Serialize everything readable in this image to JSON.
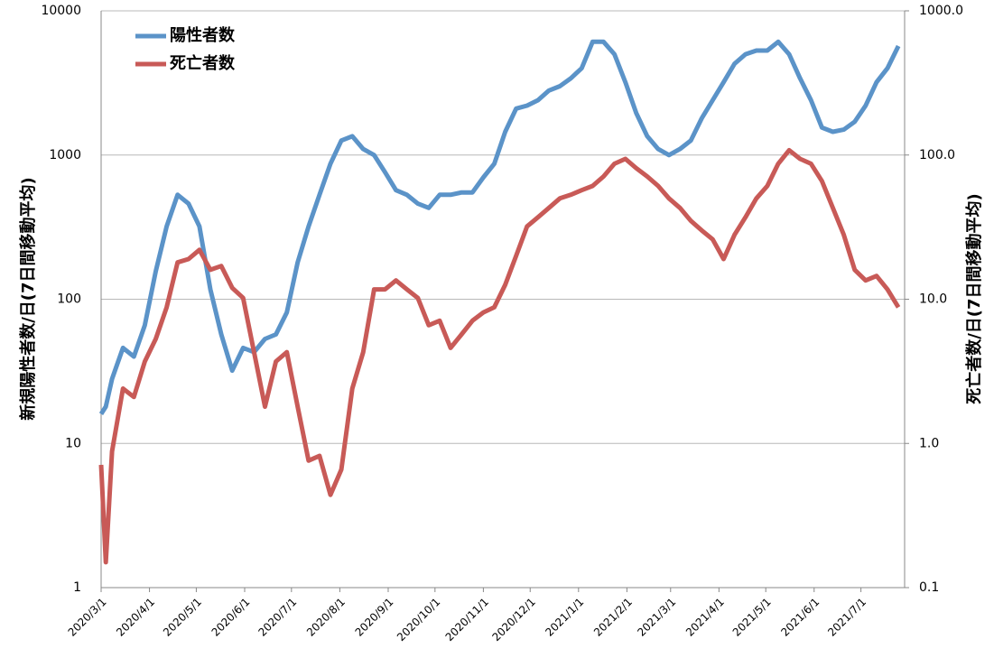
{
  "chart_data": {
    "type": "line",
    "ylabel": "新規陽性者数/日(7日間移動平均)",
    "y2label": "死亡者数/日(7日間移動平均)",
    "ylog": true,
    "y2log": true,
    "grid": true,
    "legend": "top-left",
    "x": [
      "2020/3/1",
      "2020/3/4",
      "2020/3/8",
      "2020/3/15",
      "2020/3/22",
      "2020/3/29",
      "2020/4/5",
      "2020/4/12",
      "2020/4/19",
      "2020/4/26",
      "2020/5/3",
      "2020/5/10",
      "2020/5/17",
      "2020/5/24",
      "2020/5/31",
      "2020/6/7",
      "2020/6/14",
      "2020/6/21",
      "2020/6/28",
      "2020/7/5",
      "2020/7/12",
      "2020/7/19",
      "2020/7/26",
      "2020/8/2",
      "2020/8/9",
      "2020/8/16",
      "2020/8/23",
      "2020/8/30",
      "2020/9/6",
      "2020/9/13",
      "2020/9/20",
      "2020/9/27",
      "2020/10/4",
      "2020/10/11",
      "2020/10/18",
      "2020/10/25",
      "2020/11/1",
      "2020/11/8",
      "2020/11/15",
      "2020/11/22",
      "2020/11/29",
      "2020/12/6",
      "2020/12/13",
      "2020/12/20",
      "2020/12/27",
      "2021/1/3",
      "2021/1/10",
      "2021/1/17",
      "2021/1/24",
      "2021/1/31",
      "2021/2/7",
      "2021/2/14",
      "2021/2/21",
      "2021/2/28",
      "2021/3/7",
      "2021/3/14",
      "2021/3/21",
      "2021/3/28",
      "2021/4/4",
      "2021/4/11",
      "2021/4/18",
      "2021/4/25",
      "2021/5/2",
      "2021/5/9",
      "2021/5/16",
      "2021/5/23",
      "2021/5/30",
      "2021/6/6",
      "2021/6/13",
      "2021/6/20",
      "2021/6/27",
      "2021/7/4",
      "2021/7/11",
      "2021/7/18",
      "2021/7/25"
    ],
    "xlim": [
      "2020/3/1",
      "2021/7/29"
    ],
    "xticks": [
      "2020/3/1",
      "2020/4/1",
      "2020/5/1",
      "2020/6/1",
      "2020/7/1",
      "2020/8/1",
      "2020/9/1",
      "2020/10/1",
      "2020/11/1",
      "2020/12/1",
      "2021/1/1",
      "2021/2/1",
      "2021/3/1",
      "2021/4/1",
      "2021/5/1",
      "2021/6/1",
      "2021/7/1"
    ],
    "ylim": [
      1,
      10000
    ],
    "yticks": [
      1,
      10,
      100,
      1000,
      10000
    ],
    "y2lim": [
      0.1,
      1000
    ],
    "y2ticks": [
      0.1,
      {
        "value": 1,
        "label": "1.0"
      },
      {
        "value": 10,
        "label": "10.0"
      },
      {
        "value": 100,
        "label": "100.0"
      },
      {
        "value": 1000,
        "label": "1000.0"
      }
    ],
    "series": [
      {
        "name": "陽性者数",
        "color": "#5b93c8",
        "values": [
          16,
          18,
          28,
          46,
          40,
          66,
          156,
          320,
          530,
          460,
          320,
          117,
          57,
          32,
          46,
          43,
          53,
          57,
          81,
          180,
          320,
          530,
          870,
          1260,
          1350,
          1100,
          1000,
          760,
          570,
          530,
          460,
          430,
          530,
          530,
          550,
          550,
          700,
          870,
          1450,
          2100,
          2200,
          2400,
          2800,
          3000,
          3400,
          4000,
          6100,
          6100,
          5000,
          3200,
          1950,
          1350,
          1100,
          1000,
          1100,
          1260,
          1800,
          2400,
          3200,
          4300,
          5000,
          5300,
          5300,
          6100,
          5000,
          3400,
          2400,
          1550,
          1450,
          1500,
          1700,
          2200,
          3200,
          4000,
          5700
        ]
      },
      {
        "name": "死亡者数",
        "color": "#c85a57",
        "axis": "y2",
        "values": [
          0.71,
          0.15,
          0.88,
          2.4,
          2.1,
          3.7,
          5.3,
          8.8,
          18,
          19,
          22,
          16,
          17,
          12,
          10.2,
          4.3,
          1.8,
          3.7,
          4.3,
          1.8,
          0.76,
          0.82,
          0.44,
          0.66,
          2.4,
          4.3,
          11.7,
          11.7,
          13.5,
          11.7,
          10.2,
          6.6,
          7.1,
          4.6,
          5.7,
          7.1,
          8.1,
          8.8,
          12.6,
          20,
          32,
          37,
          43,
          50,
          53,
          57,
          61,
          71,
          87,
          94,
          81,
          71,
          61,
          50,
          43,
          35,
          30,
          26,
          19,
          28,
          37,
          50,
          61,
          87,
          108,
          94,
          87,
          66,
          43,
          28,
          16,
          13.5,
          14.5,
          11.7,
          8.8
        ]
      }
    ]
  }
}
